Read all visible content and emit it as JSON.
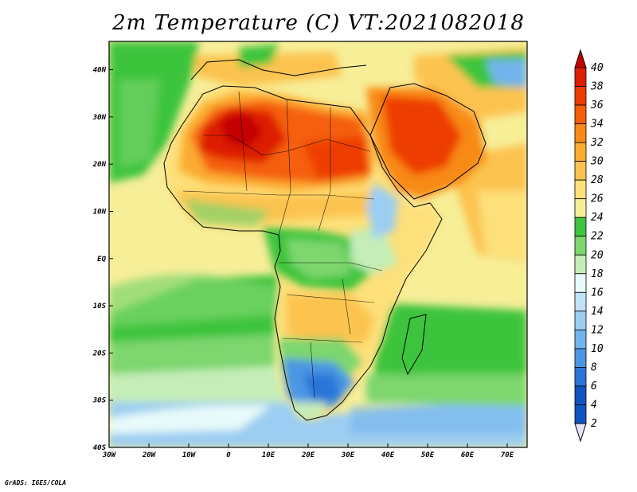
{
  "title": "2m Temperature (C) VT:2021082018",
  "credit": "GrADS: IGES/COLA",
  "map": {
    "lon_range": [
      -30,
      75
    ],
    "lat_range": [
      -40,
      46
    ],
    "x_ticks": [
      "30W",
      "20W",
      "10W",
      "0",
      "10E",
      "20E",
      "30E",
      "40E",
      "50E",
      "60E",
      "70E"
    ],
    "y_ticks": [
      "40N",
      "30N",
      "20N",
      "10N",
      "EQ",
      "10S",
      "20S",
      "30S",
      "40S"
    ],
    "y_tick_values": [
      40,
      30,
      20,
      10,
      0,
      -10,
      -20,
      -30,
      -40
    ],
    "x_tick_values": [
      -30,
      -20,
      -10,
      0,
      10,
      20,
      30,
      40,
      50,
      60,
      70
    ]
  },
  "colorbar": {
    "levels": [
      "40",
      "38",
      "36",
      "34",
      "32",
      "30",
      "28",
      "26",
      "24",
      "22",
      "20",
      "18",
      "16",
      "14",
      "12",
      "10",
      "8",
      "6",
      "4",
      "2"
    ],
    "colors": [
      "#c40000",
      "#dd1d00",
      "#ee3d00",
      "#f55f08",
      "#f88a18",
      "#fbab30",
      "#fcc350",
      "#fde07a",
      "#f7ee98",
      "#3ec43e",
      "#7dd66e",
      "#c4edb8",
      "#e8fafa",
      "#c2e2f7",
      "#9ccdf2",
      "#73b4ec",
      "#4b96e3",
      "#2a76d8",
      "#1254bf",
      "#0a2a8c"
    ]
  }
}
